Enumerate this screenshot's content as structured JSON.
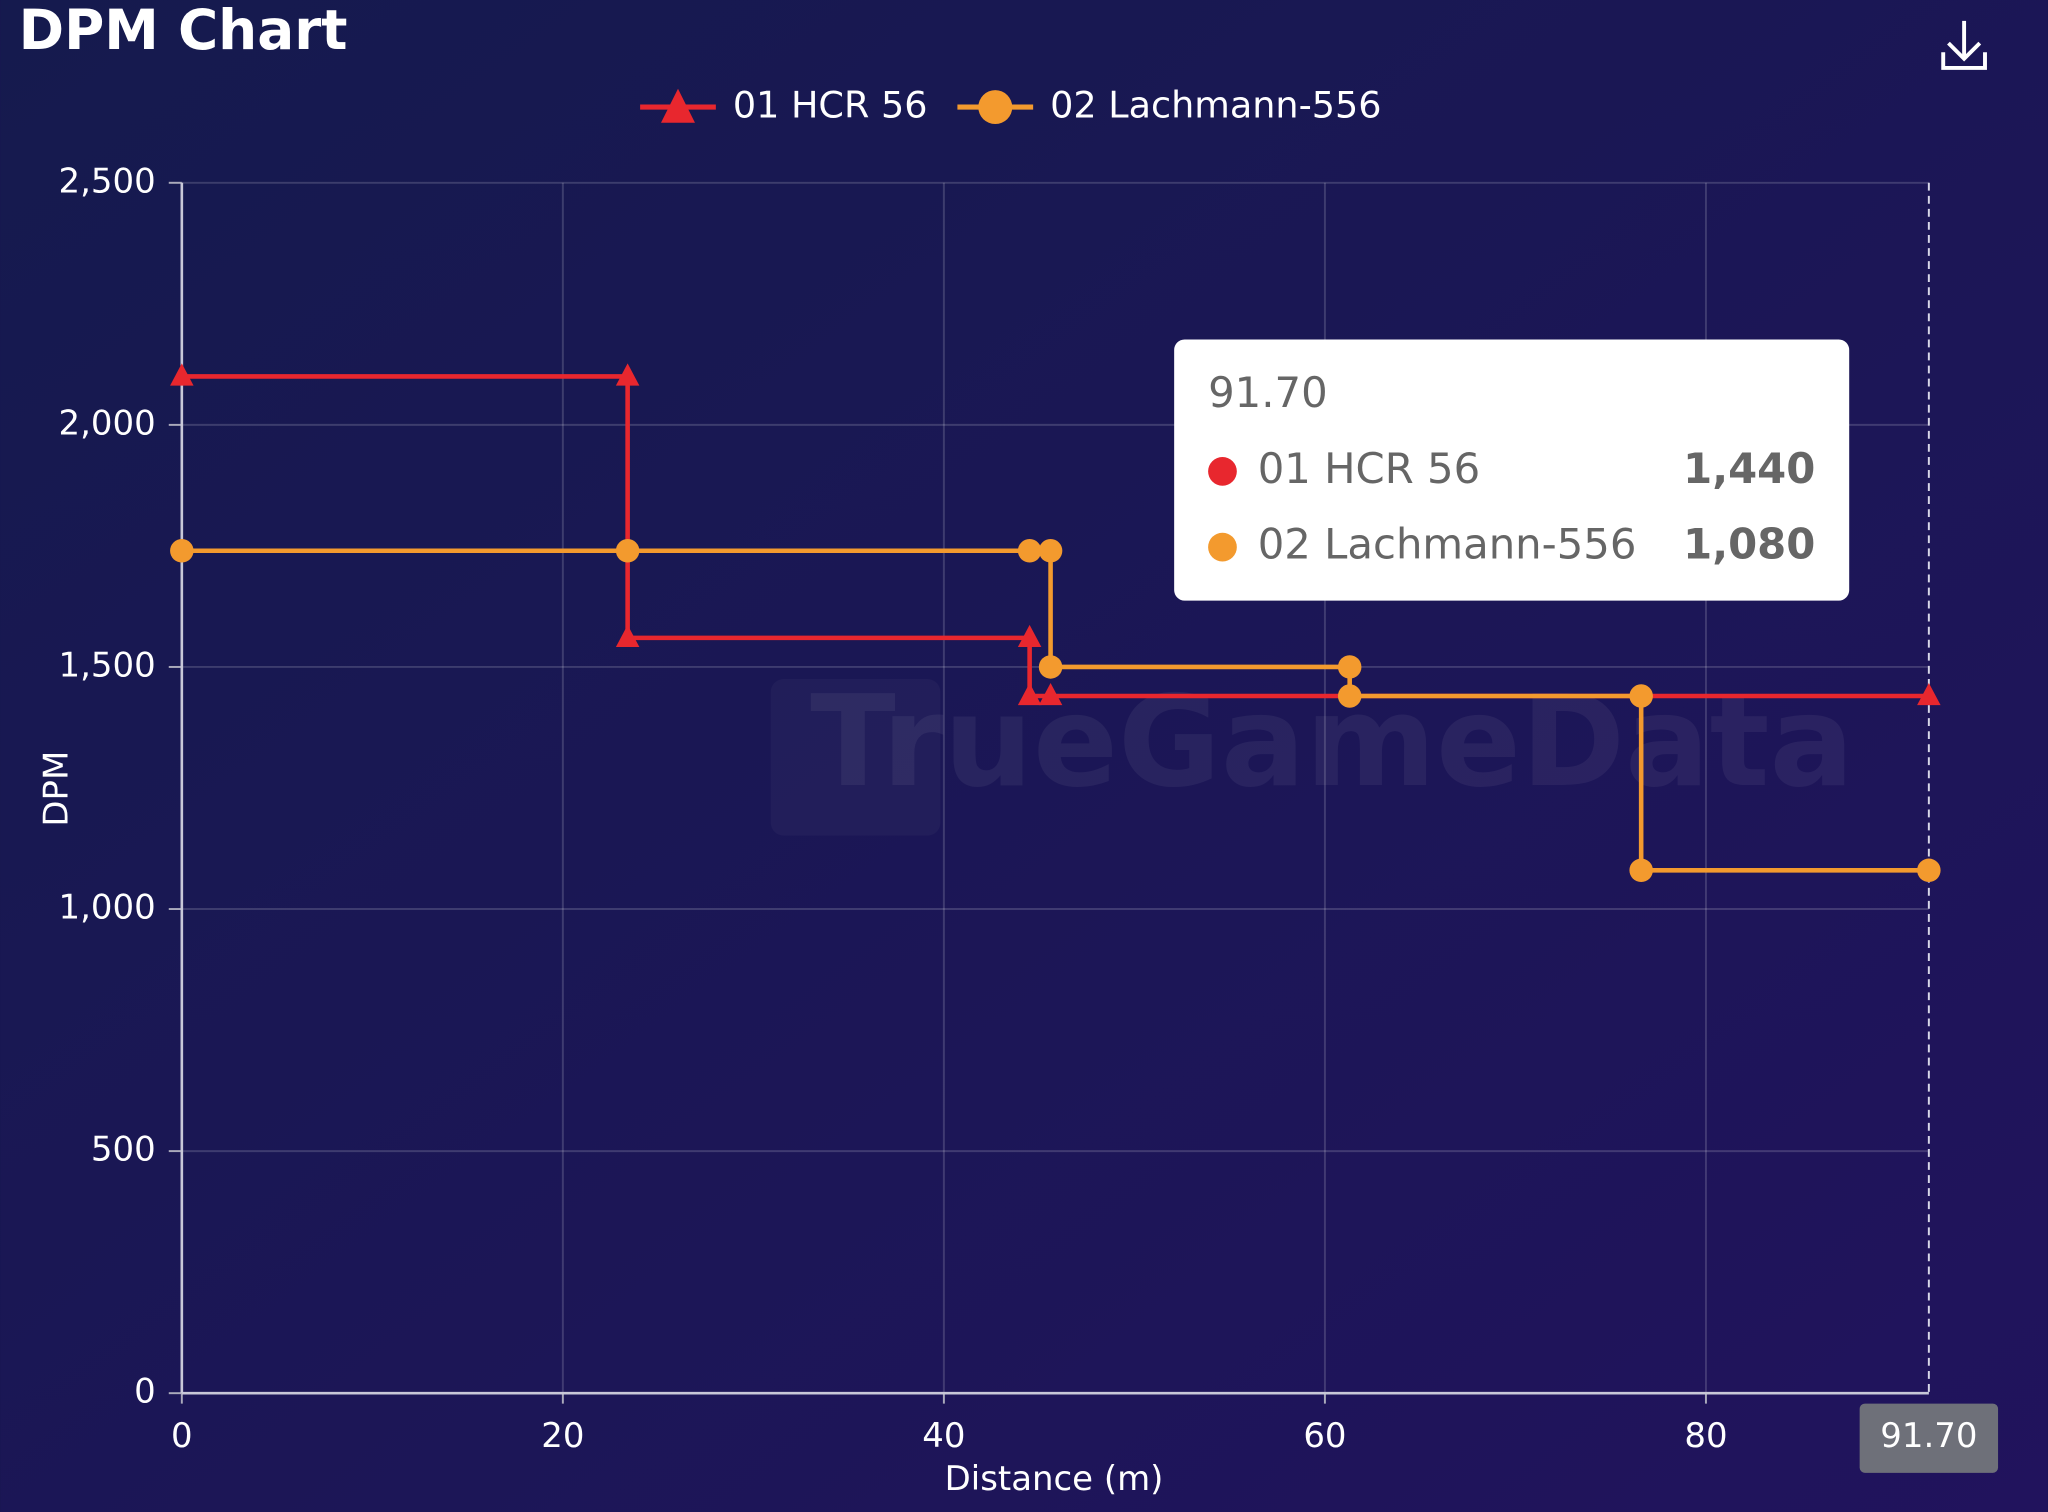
{
  "chart_data": {
    "type": "line",
    "title": "DPM Chart",
    "xlabel": "Distance (m)",
    "ylabel": "DPM",
    "watermark": "TrueGameData",
    "xlim": [
      0,
      91.7
    ],
    "xticks": [
      0,
      20,
      40,
      60,
      80
    ],
    "ylim": [
      0,
      2500
    ],
    "yticks": [
      0,
      {
        "value": 500,
        "label": "500"
      },
      {
        "value": 1000,
        "label": "1,000"
      },
      {
        "value": 1500,
        "label": "1,500"
      },
      {
        "value": 2000,
        "label": "2,000"
      },
      {
        "value": 2500,
        "label": "2,500"
      }
    ],
    "grid": true,
    "legend": "top",
    "series": [
      {
        "name": "01 HCR 56",
        "color": "#e8272e",
        "marker": "triangle",
        "x": [
          0,
          23.4,
          23.4,
          44.5,
          44.5,
          45.6,
          91.7
        ],
        "values": [
          2100,
          2100,
          1560,
          1560,
          1440,
          1440,
          1440
        ]
      },
      {
        "name": "02 Lachmann-556",
        "color": "#f39a2e",
        "marker": "circle",
        "x": [
          0,
          23.4,
          44.5,
          45.6,
          45.6,
          61.3,
          61.3,
          76.6,
          76.6,
          91.7
        ],
        "values": [
          1740,
          1740,
          1740,
          1740,
          1500,
          1500,
          1440,
          1440,
          1080,
          1080
        ]
      }
    ],
    "tooltip": {
      "x": {
        "value": 91.7,
        "label": "91.70"
      },
      "rows": [
        {
          "name": "01 HCR 56",
          "value": {
            "value": 1440,
            "label": "1,440"
          }
        },
        {
          "name": "02 Lachmann-556",
          "value": {
            "value": 1080,
            "label": "1,080"
          }
        }
      ]
    }
  }
}
